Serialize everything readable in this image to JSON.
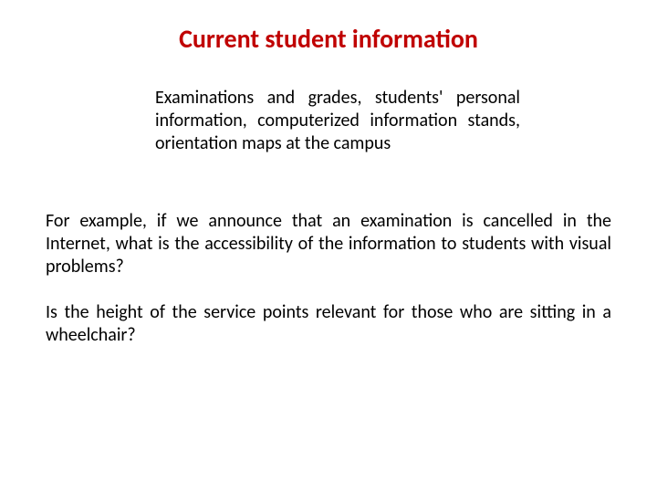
{
  "slide": {
    "title": "Current student information",
    "sub_paragraph": "Examinations and grades, students' personal information, computerized information stands, orientation maps at the campus",
    "paragraph_1": "For example, if we announce that an examination is cancelled in the Internet, what is the accessibility of the information to students with visual problems?",
    "paragraph_2": "Is the height of the service points relevant for those who are sitting in a wheelchair?",
    "title_color": "#c00000",
    "body_color": "#000000",
    "background_color": "#ffffff",
    "title_fontsize": 28,
    "body_fontsize": 20
  }
}
